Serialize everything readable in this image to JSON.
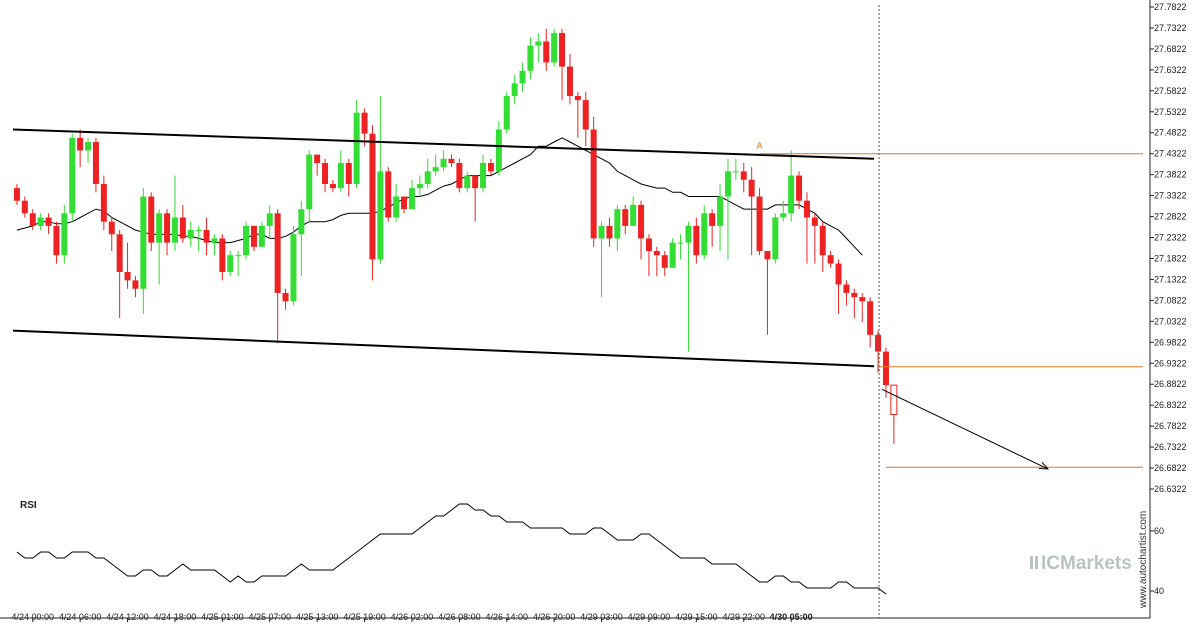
{
  "chart_data": {
    "type": "candlestick",
    "price_axis": {
      "ticks": [
        "27.7822",
        "27.7322",
        "27.6822",
        "27.6322",
        "27.5822",
        "27.5322",
        "27.4822",
        "27.4322",
        "27.3822",
        "27.3322",
        "27.2822",
        "27.2322",
        "27.1822",
        "27.1322",
        "27.0822",
        "27.0322",
        "26.9822",
        "26.9322",
        "26.8822",
        "26.8322",
        "26.7822",
        "26.7322",
        "26.6822",
        "26.6322"
      ],
      "range": [
        26.6322,
        27.7822
      ]
    },
    "time_axis": {
      "labels": [
        "4/24 00:00",
        "4/24 06:00",
        "4/24 12:00",
        "4/24 18:00",
        "4/25 01:00",
        "4/25 07:00",
        "4/25 13:00",
        "4/25 19:00",
        "4/26 02:00",
        "4/26 08:00",
        "4/26 14:00",
        "4/26 20:00",
        "4/29 03:00",
        "4/29 09:00",
        "4/29 15:00",
        "4/29 22:00",
        "4/30 05:00"
      ],
      "label_bar_index": [
        2,
        8,
        14,
        20,
        26,
        32,
        38,
        44,
        50,
        56,
        62,
        68,
        74,
        80,
        86,
        92,
        98
      ],
      "last_label_bold": true
    },
    "candles": [
      [
        27.35,
        27.32,
        27.36,
        27.31
      ],
      [
        27.32,
        27.29,
        27.33,
        27.28
      ],
      [
        27.29,
        27.26,
        27.3,
        27.25
      ],
      [
        27.26,
        27.28,
        27.29,
        27.25
      ],
      [
        27.28,
        27.26,
        27.29,
        27.24
      ],
      [
        27.26,
        27.19,
        27.27,
        27.17
      ],
      [
        27.19,
        27.29,
        27.31,
        27.17
      ],
      [
        27.29,
        27.47,
        27.48,
        27.27
      ],
      [
        27.47,
        27.44,
        27.49,
        27.4
      ],
      [
        27.44,
        27.46,
        27.47,
        27.41
      ],
      [
        27.46,
        27.36,
        27.47,
        27.34
      ],
      [
        27.36,
        27.27,
        27.38,
        27.25
      ],
      [
        27.27,
        27.24,
        27.28,
        27.2
      ],
      [
        27.24,
        27.15,
        27.25,
        27.04
      ],
      [
        27.15,
        27.13,
        27.22,
        27.11
      ],
      [
        27.13,
        27.11,
        27.14,
        27.09
      ],
      [
        27.11,
        27.33,
        27.35,
        27.05
      ],
      [
        27.33,
        27.22,
        27.34,
        27.2
      ],
      [
        27.22,
        27.29,
        27.3,
        27.12
      ],
      [
        27.29,
        27.22,
        27.3,
        27.19
      ],
      [
        27.22,
        27.28,
        27.38,
        27.2
      ],
      [
        27.28,
        27.23,
        27.31,
        27.22
      ],
      [
        27.23,
        27.25,
        27.27,
        27.21
      ],
      [
        27.25,
        27.25,
        27.26,
        27.2
      ],
      [
        27.25,
        27.22,
        27.28,
        27.19
      ],
      [
        27.22,
        27.23,
        27.24,
        27.19
      ],
      [
        27.23,
        27.15,
        27.24,
        27.13
      ],
      [
        27.15,
        27.19,
        27.2,
        27.14
      ],
      [
        27.19,
        27.19,
        27.2,
        27.14
      ],
      [
        27.19,
        27.26,
        27.27,
        27.18
      ],
      [
        27.26,
        27.21,
        27.26,
        27.2
      ],
      [
        27.21,
        27.26,
        27.27,
        27.21
      ],
      [
        27.26,
        27.29,
        27.31,
        27.23
      ],
      [
        27.29,
        27.1,
        27.3,
        26.98
      ],
      [
        27.1,
        27.08,
        27.11,
        27.06
      ],
      [
        27.08,
        27.24,
        27.26,
        27.07
      ],
      [
        27.24,
        27.3,
        27.32,
        27.14
      ],
      [
        27.3,
        27.43,
        27.44,
        27.27
      ],
      [
        27.43,
        27.41,
        27.42,
        27.38
      ],
      [
        27.41,
        27.36,
        27.42,
        27.34
      ],
      [
        27.36,
        27.35,
        27.37,
        27.34
      ],
      [
        27.35,
        27.41,
        27.44,
        27.34
      ],
      [
        27.41,
        27.36,
        27.42,
        27.33
      ],
      [
        27.36,
        27.53,
        27.56,
        27.35
      ],
      [
        27.53,
        27.48,
        27.54,
        27.45
      ],
      [
        27.48,
        27.18,
        27.5,
        27.13
      ],
      [
        27.18,
        27.39,
        27.57,
        27.17
      ],
      [
        27.39,
        27.28,
        27.4,
        27.27
      ],
      [
        27.28,
        27.33,
        27.36,
        27.27
      ],
      [
        27.33,
        27.3,
        27.31,
        27.29
      ],
      [
        27.3,
        27.35,
        27.37,
        27.3
      ],
      [
        27.35,
        27.36,
        27.38,
        27.33
      ],
      [
        27.36,
        27.39,
        27.42,
        27.35
      ],
      [
        27.39,
        27.4,
        27.43,
        27.38
      ],
      [
        27.4,
        27.42,
        27.44,
        27.39
      ],
      [
        27.42,
        27.41,
        27.43,
        27.4
      ],
      [
        27.41,
        27.35,
        27.42,
        27.34
      ],
      [
        27.35,
        27.38,
        27.39,
        27.34
      ],
      [
        27.38,
        27.35,
        27.37,
        27.27
      ],
      [
        27.35,
        27.41,
        27.43,
        27.34
      ],
      [
        27.41,
        27.39,
        27.42,
        27.38
      ],
      [
        27.39,
        27.49,
        27.51,
        27.38
      ],
      [
        27.49,
        27.57,
        27.58,
        27.48
      ],
      [
        27.57,
        27.6,
        27.62,
        27.55
      ],
      [
        27.6,
        27.63,
        27.65,
        27.58
      ],
      [
        27.63,
        27.69,
        27.71,
        27.61
      ],
      [
        27.69,
        27.7,
        27.72,
        27.65
      ],
      [
        27.7,
        27.65,
        27.73,
        27.63
      ],
      [
        27.65,
        27.72,
        27.73,
        27.64
      ],
      [
        27.72,
        27.64,
        27.73,
        27.56
      ],
      [
        27.64,
        27.57,
        27.67,
        27.55
      ],
      [
        27.57,
        27.56,
        27.58,
        27.47
      ],
      [
        27.56,
        27.49,
        27.58,
        27.45
      ],
      [
        27.49,
        27.23,
        27.52,
        27.21
      ],
      [
        27.23,
        27.26,
        27.27,
        27.09
      ],
      [
        27.26,
        27.23,
        27.28,
        27.21
      ],
      [
        27.23,
        27.3,
        27.31,
        27.2
      ],
      [
        27.3,
        27.26,
        27.31,
        27.24
      ],
      [
        27.26,
        27.31,
        27.33,
        27.26
      ],
      [
        27.31,
        27.23,
        27.32,
        27.18
      ],
      [
        27.23,
        27.2,
        27.24,
        27.14
      ],
      [
        27.2,
        27.19,
        27.21,
        27.14
      ],
      [
        27.19,
        27.16,
        27.2,
        27.14
      ],
      [
        27.16,
        27.22,
        27.23,
        27.16
      ],
      [
        27.22,
        27.22,
        27.24,
        27.18
      ],
      [
        27.22,
        27.26,
        27.27,
        26.96
      ],
      [
        27.26,
        27.19,
        27.28,
        27.17
      ],
      [
        27.19,
        27.29,
        27.31,
        27.18
      ],
      [
        27.29,
        27.26,
        27.3,
        27.21
      ],
      [
        27.26,
        27.33,
        27.36,
        27.2
      ],
      [
        27.33,
        27.39,
        27.42,
        27.18
      ],
      [
        27.39,
        27.39,
        27.42,
        27.37
      ],
      [
        27.39,
        27.37,
        27.41,
        27.34
      ],
      [
        27.37,
        27.33,
        27.4,
        27.19
      ],
      [
        27.33,
        27.2,
        27.35,
        27.19
      ],
      [
        27.2,
        27.18,
        27.2,
        27.0
      ],
      [
        27.18,
        27.28,
        27.29,
        27.17
      ],
      [
        27.28,
        27.29,
        27.32,
        27.27
      ],
      [
        27.29,
        27.38,
        27.44,
        27.27
      ],
      [
        27.38,
        27.32,
        27.39,
        27.3
      ],
      [
        27.32,
        27.28,
        27.34,
        27.17
      ],
      [
        27.28,
        27.26,
        27.29,
        27.17
      ],
      [
        27.26,
        27.19,
        27.27,
        27.15
      ],
      [
        27.19,
        27.17,
        27.2,
        27.16
      ],
      [
        27.17,
        27.12,
        27.18,
        27.05
      ],
      [
        27.12,
        27.1,
        27.13,
        27.07
      ],
      [
        27.1,
        27.09,
        27.11,
        27.04
      ],
      [
        27.09,
        27.08,
        27.1,
        27.03
      ],
      [
        27.08,
        27.0,
        27.09,
        26.97
      ],
      [
        27.0,
        26.96,
        27.01,
        26.91
      ],
      [
        26.96,
        26.88,
        26.97,
        26.85
      ],
      [
        26.88,
        26.81,
        26.87,
        26.74
      ]
    ],
    "moving_average": [
      27.25,
      27.255,
      27.26,
      27.27,
      27.27,
      27.265,
      27.265,
      27.27,
      27.28,
      27.29,
      27.3,
      27.295,
      27.28,
      27.27,
      27.26,
      27.25,
      27.245,
      27.24,
      27.24,
      27.24,
      27.24,
      27.235,
      27.235,
      27.23,
      27.225,
      27.22,
      27.22,
      27.22,
      27.225,
      27.23,
      27.24,
      27.24,
      27.23,
      27.23,
      27.235,
      27.245,
      27.26,
      27.27,
      27.27,
      27.27,
      27.275,
      27.285,
      27.29,
      27.29,
      27.29,
      27.29,
      27.295,
      27.305,
      27.315,
      27.325,
      27.33,
      27.33,
      27.335,
      27.345,
      27.355,
      27.36,
      27.37,
      27.38,
      27.38,
      27.38,
      27.38,
      27.39,
      27.4,
      27.41,
      27.42,
      27.43,
      27.45,
      27.45,
      27.46,
      27.47,
      27.46,
      27.45,
      27.44,
      27.43,
      27.42,
      27.41,
      27.39,
      27.38,
      27.37,
      27.36,
      27.355,
      27.35,
      27.35,
      27.34,
      27.34,
      27.33,
      27.33,
      27.33,
      27.33,
      27.33,
      27.32,
      27.31,
      27.3,
      27.3,
      27.3,
      27.3,
      27.31,
      27.31,
      27.31,
      27.31,
      27.3,
      27.29,
      27.27,
      27.26,
      27.25,
      27.23,
      27.21,
      27.19
    ],
    "channel": {
      "upper": {
        "from": [
          -0.5,
          27.49
        ],
        "to": [
          108.5,
          27.42
        ]
      },
      "lower": {
        "from": [
          -0.5,
          27.01
        ],
        "to": [
          108.5,
          26.925
        ]
      }
    },
    "pattern_point_label": "A",
    "pattern_point": {
      "bar": 94,
      "price": 27.435
    },
    "levels": [
      {
        "price": 27.432,
        "from_bar": 94
      },
      {
        "price": 26.924,
        "from_bar": 109
      },
      {
        "price": 26.684,
        "from_bar": 110
      }
    ],
    "forecast_arrow": {
      "from": [
        109.5,
        26.87
      ],
      "to": [
        131.0,
        26.68
      ]
    },
    "projection_bars": 131,
    "current_bar": 109.5,
    "rsi": {
      "label": "RSI",
      "ticks": [
        "60",
        "40"
      ],
      "tick_values": [
        60,
        40
      ],
      "range": [
        32,
        72
      ],
      "values": [
        53,
        51,
        51,
        53,
        53,
        51,
        51,
        53,
        53,
        53,
        51,
        51,
        49,
        47,
        45,
        45,
        47,
        47,
        45,
        45,
        47,
        49,
        47,
        47,
        47,
        47,
        45,
        43,
        45,
        43,
        43,
        45,
        45,
        45,
        45,
        47,
        49,
        47,
        47,
        47,
        47,
        49,
        51,
        53,
        55,
        57,
        59,
        59,
        59,
        59,
        59,
        61,
        63,
        65,
        65,
        67,
        69,
        69,
        67,
        67,
        65,
        65,
        63,
        63,
        63,
        61,
        61,
        61,
        61,
        61,
        59,
        59,
        59,
        61,
        61,
        59,
        57,
        57,
        57,
        59,
        59,
        57,
        55,
        53,
        51,
        51,
        51,
        51,
        49,
        49,
        49,
        49,
        47,
        45,
        43,
        43,
        45,
        45,
        43,
        43,
        41,
        41,
        41,
        41,
        43,
        43,
        41,
        41,
        41,
        41,
        39
      ]
    },
    "watermark_brand": "ICMarkets",
    "watermark_site": "www.autochartist.com",
    "colors": {
      "bull": "#33dd33",
      "bear": "#ee2222",
      "channel": "#000000",
      "level": "#e07820",
      "moving_average": "#000000",
      "rsi": "#000000",
      "current_time_line": "#555555",
      "watermark": "#b9c4be"
    }
  }
}
